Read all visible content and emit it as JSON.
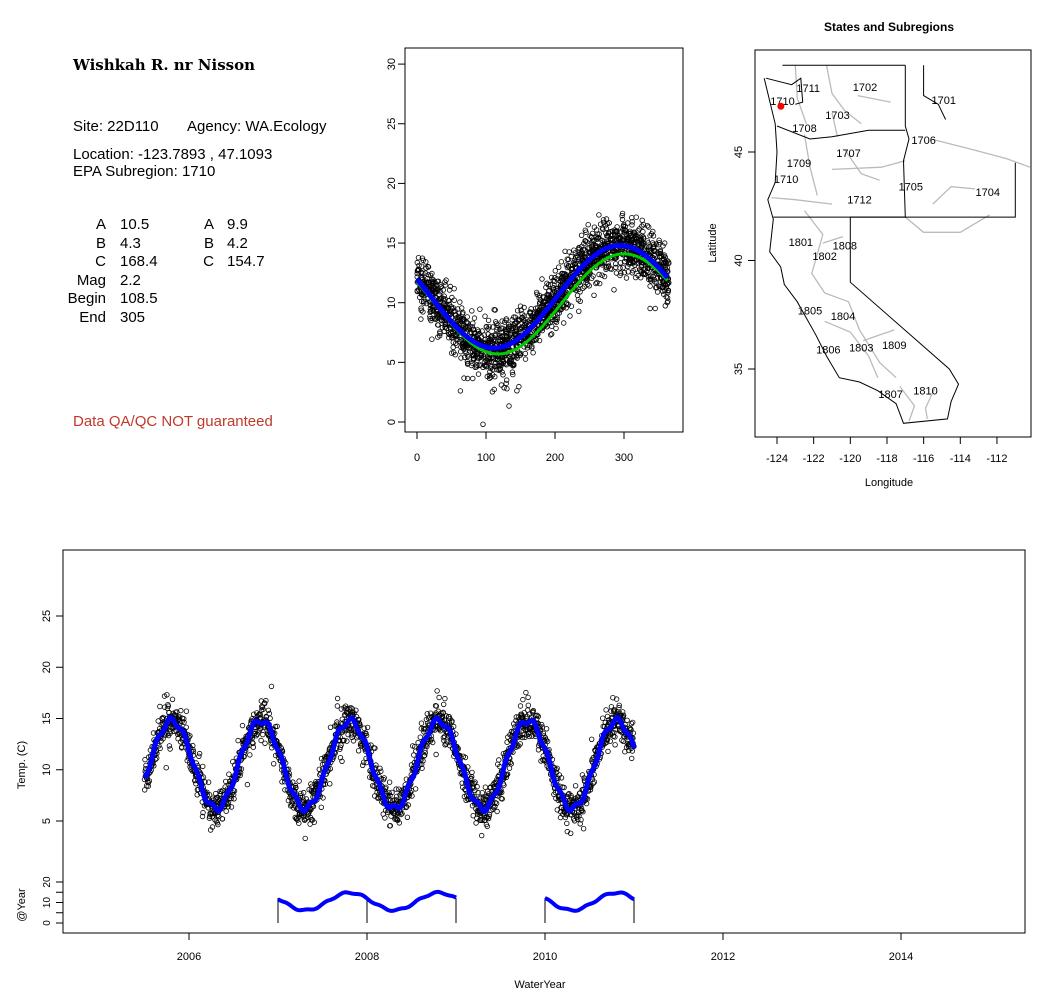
{
  "info": {
    "site_name": "Wishkah R. nr Nisson",
    "site": "Site: 22D110",
    "agency": "Agency: WA.Ecology",
    "location": "Location: -123.7893 , 47.1093",
    "subregion": "EPA Subregion: 1710",
    "params_left": [
      {
        "label": "A",
        "value": "10.5"
      },
      {
        "label": "B",
        "value": "4.3"
      },
      {
        "label": "C",
        "value": "168.4"
      },
      {
        "label": "Mag",
        "value": "2.2"
      },
      {
        "label": "Begin",
        "value": "108.5"
      },
      {
        "label": "End",
        "value": "305"
      }
    ],
    "params_right": [
      {
        "label": "A",
        "value": "9.9"
      },
      {
        "label": "B",
        "value": "4.2"
      },
      {
        "label": "C",
        "value": "154.7"
      }
    ],
    "disclaimer": "Data QA/QC NOT guaranteed",
    "disclaimer_color": "#c0392b"
  },
  "chart_data": [
    {
      "type": "scatter",
      "title": "",
      "xlabel": "",
      "ylabel": "",
      "xlim": [
        0,
        365
      ],
      "ylim": [
        0,
        30
      ],
      "xticks": [
        "0",
        "100",
        "200",
        "300"
      ],
      "yticks": [
        "0",
        "5",
        "10",
        "15",
        "20",
        "25",
        "30"
      ],
      "fits": [
        {
          "name": "blue fit",
          "color": "#0000ff",
          "A": 10.5,
          "B": 4.3,
          "C": 168.4
        },
        {
          "name": "green fit",
          "color": "#00cc00",
          "A": 9.9,
          "B": 4.2,
          "C": 154.7
        }
      ]
    },
    {
      "type": "map",
      "title": "States and Subregions",
      "xlabel": "Longitude",
      "ylabel": "Latitude",
      "xlim": [
        -125.2,
        -110.1
      ],
      "ylim": [
        31.9,
        49.7
      ],
      "xticks": [
        "-124",
        "-122",
        "-120",
        "-118",
        "-116",
        "-114",
        "-112"
      ],
      "yticks": [
        "35",
        "40",
        "45"
      ],
      "site": {
        "lon": -123.7893,
        "lat": 47.1093,
        "color": "#ff0000"
      },
      "regions": [
        {
          "label": "1711",
          "lon": -122.3,
          "lat": 47.95
        },
        {
          "label": "1710",
          "lon": -123.7,
          "lat": 47.35
        },
        {
          "label": "1702",
          "lon": -119.2,
          "lat": 48.0
        },
        {
          "label": "1701",
          "lon": -114.9,
          "lat": 47.4
        },
        {
          "label": "1703",
          "lon": -120.7,
          "lat": 46.7
        },
        {
          "label": "1708",
          "lon": -122.5,
          "lat": 46.1
        },
        {
          "label": "1706",
          "lon": -116.0,
          "lat": 45.55
        },
        {
          "label": "1707",
          "lon": -120.1,
          "lat": 44.95
        },
        {
          "label": "1709",
          "lon": -122.8,
          "lat": 44.5
        },
        {
          "label": "1710",
          "lon": -123.5,
          "lat": 43.75
        },
        {
          "label": "1705",
          "lon": -116.7,
          "lat": 43.4
        },
        {
          "label": "1704",
          "lon": -112.5,
          "lat": 43.15
        },
        {
          "label": "1712",
          "lon": -119.5,
          "lat": 42.8
        },
        {
          "label": "1801",
          "lon": -122.7,
          "lat": 40.85
        },
        {
          "label": "1808",
          "lon": -120.3,
          "lat": 40.7
        },
        {
          "label": "1802",
          "lon": -121.4,
          "lat": 40.2
        },
        {
          "label": "1805",
          "lon": -122.2,
          "lat": 37.7
        },
        {
          "label": "1804",
          "lon": -120.4,
          "lat": 37.45
        },
        {
          "label": "1803",
          "lon": -119.4,
          "lat": 36.0
        },
        {
          "label": "1809",
          "lon": -117.6,
          "lat": 36.1
        },
        {
          "label": "1806",
          "lon": -121.2,
          "lat": 35.9
        },
        {
          "label": "1807",
          "lon": -117.8,
          "lat": 33.85
        },
        {
          "label": "1810",
          "lon": -115.9,
          "lat": 34.0
        }
      ]
    },
    {
      "type": "line",
      "title": "",
      "xlabel": "WaterYear",
      "ylabel": "Temp. (C)",
      "ylabel2": "@Year",
      "xlim": [
        2004.6,
        2015.4
      ],
      "ylim": [
        5,
        25
      ],
      "xticks": [
        "2006",
        "2008",
        "2010",
        "2012",
        "2014"
      ],
      "yticks": [
        "5",
        "10",
        "15",
        "20",
        "25"
      ],
      "yticks2": [
        "0",
        "5",
        "10",
        "15",
        "20"
      ],
      "series_range": [
        2005.5,
        2011.0
      ],
      "annual_fit_years": [
        [
          2007,
          2009
        ],
        [
          2010,
          2011
        ]
      ],
      "year_marks": [
        2007,
        2008,
        2009,
        2010,
        2011
      ]
    }
  ]
}
